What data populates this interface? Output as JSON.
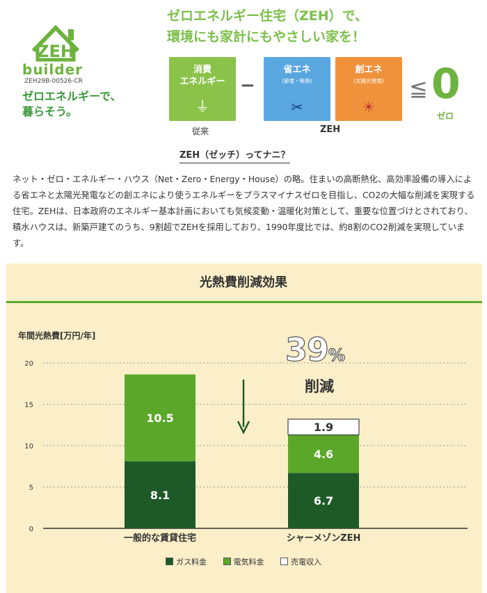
{
  "header": {
    "logo_text": "builder",
    "logo_code": "ZEH29B-00526-CR",
    "slogan": "ゼロエネルギーで、\n暮らそう。",
    "headline": "ゼロエネルギー住宅（ZEH）で、\n環境にも家計にもやさしい家を！",
    "zero_value": "0",
    "zero_label": "ゼロ",
    "label_old": "従来",
    "label_zeh": "ZEH"
  },
  "boxes": [
    {
      "title": "消費\nエネルギー",
      "sub": "",
      "color": "#8bc34a",
      "icon": "plug-icon"
    },
    {
      "title": "省エネ",
      "sub": "(節電・断熱)",
      "color": "#5aa7e0",
      "icon": "scissors-icon"
    },
    {
      "title": "創エネ",
      "sub": "(太陽光発電)",
      "color": "#f0923c",
      "icon": "sun-icon"
    }
  ],
  "question": "ZEH（ゼッチ）ってナニ？",
  "description": "ネット・ゼロ・エネルギー・ハウス（Net・Zero・Energy・House）の略。住まいの高断熱化、高効率設備の導入による省エネと太陽光発電などの創エネにより使うエネルギーをプラスマイナスゼロを目指し、CO2の大幅な削減を実現する住宅。ZEHは、日本政府のエネルギー基本計画においても気候変動・温暖化対策として、重要な位置づけとされており、積水ハウスは、新築戸建てのうち、9割超でZEHを採用しており、1990年度比では、約8割のCO2削減を実現しています。",
  "chart_data": {
    "type": "bar",
    "stacked": true,
    "title": "光熱費削減効果",
    "ylabel": "年間光熱費[万円/年]",
    "ylim": [
      0,
      20
    ],
    "yticks": [
      0,
      5,
      10,
      15,
      20
    ],
    "grid": true,
    "categories": [
      "一般的な賃貸住宅",
      "シャーメゾンZEH"
    ],
    "series": [
      {
        "name": "ガス料金",
        "values": [
          8.1,
          6.7
        ],
        "color": "#1e5a28",
        "label_color": "#ffffff"
      },
      {
        "name": "電気料金",
        "values": [
          10.5,
          4.6
        ],
        "color": "#5aa72a",
        "label_color": "#ffffff"
      },
      {
        "name": "売電収入",
        "values": [
          0,
          1.9
        ],
        "color": "#ffffff",
        "label_color": "#333333"
      }
    ],
    "annotation": {
      "value": "39",
      "unit": "%",
      "label": "削減"
    },
    "legend_position": "bottom"
  }
}
